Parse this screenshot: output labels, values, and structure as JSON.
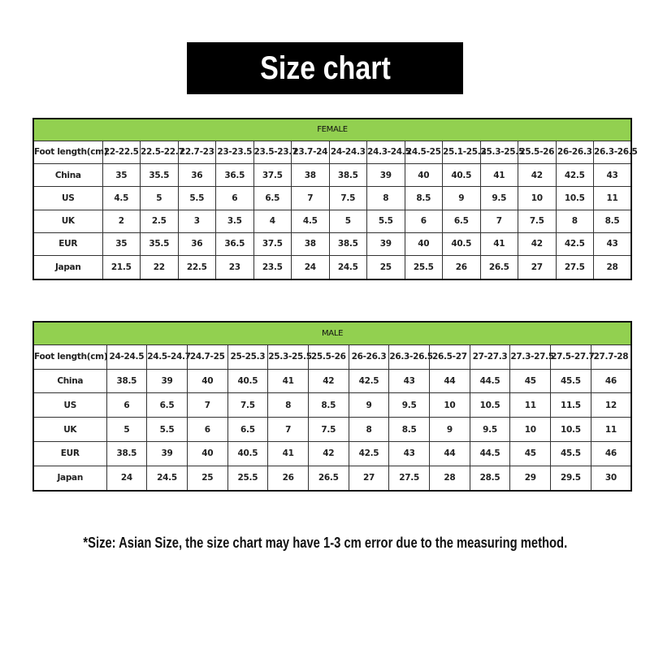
{
  "title": "Size chart",
  "female": {
    "header": "FEMALE",
    "first_col_label": "Foot length(cm)",
    "foot_lengths": [
      "22-22.5",
      "22.5-22.7",
      "22.7-23",
      "23-23.5",
      "23.5-23.7",
      "23.7-24",
      "24-24.3",
      "24.3-24.5",
      "24.5-25",
      "25.1-25.3",
      "25.3-25.5",
      "25.5-26",
      "26-26.3",
      "26.3-26.5"
    ],
    "rows": [
      {
        "label": "China",
        "values": [
          "35",
          "35.5",
          "36",
          "36.5",
          "37.5",
          "38",
          "38.5",
          "39",
          "40",
          "40.5",
          "41",
          "42",
          "42.5",
          "43"
        ]
      },
      {
        "label": "US",
        "values": [
          "4.5",
          "5",
          "5.5",
          "6",
          "6.5",
          "7",
          "7.5",
          "8",
          "8.5",
          "9",
          "9.5",
          "10",
          "10.5",
          "11"
        ]
      },
      {
        "label": "UK",
        "values": [
          "2",
          "2.5",
          "3",
          "3.5",
          "4",
          "4.5",
          "5",
          "5.5",
          "6",
          "6.5",
          "7",
          "7.5",
          "8",
          "8.5"
        ]
      },
      {
        "label": "EUR",
        "values": [
          "35",
          "35.5",
          "36",
          "36.5",
          "37.5",
          "38",
          "38.5",
          "39",
          "40",
          "40.5",
          "41",
          "42",
          "42.5",
          "43"
        ]
      },
      {
        "label": "Japan",
        "values": [
          "21.5",
          "22",
          "22.5",
          "23",
          "23.5",
          "24",
          "24.5",
          "25",
          "25.5",
          "26",
          "26.5",
          "27",
          "27.5",
          "28"
        ]
      }
    ]
  },
  "male": {
    "header": "MALE",
    "first_col_label": "Foot length(cm)",
    "foot_lengths": [
      "24-24.5",
      "24.5-24.7",
      "24.7-25",
      "25-25.3",
      "25.3-25.5",
      "25.5-26",
      "26-26.3",
      "26.3-26.5",
      "26.5-27",
      "27-27.3",
      "27.3-27.5",
      "27.5-27.7",
      "27.7-28"
    ],
    "rows": [
      {
        "label": "China",
        "values": [
          "38.5",
          "39",
          "40",
          "40.5",
          "41",
          "42",
          "42.5",
          "43",
          "44",
          "44.5",
          "45",
          "45.5",
          "46"
        ]
      },
      {
        "label": "US",
        "values": [
          "6",
          "6.5",
          "7",
          "7.5",
          "8",
          "8.5",
          "9",
          "9.5",
          "10",
          "10.5",
          "11",
          "11.5",
          "12"
        ]
      },
      {
        "label": "UK",
        "values": [
          "5",
          "5.5",
          "6",
          "6.5",
          "7",
          "7.5",
          "8",
          "8.5",
          "9",
          "9.5",
          "10",
          "10.5",
          "11"
        ]
      },
      {
        "label": "EUR",
        "values": [
          "38.5",
          "39",
          "40",
          "40.5",
          "41",
          "42",
          "42.5",
          "43",
          "44",
          "44.5",
          "45",
          "45.5",
          "46"
        ]
      },
      {
        "label": "Japan",
        "values": [
          "24",
          "24.5",
          "25",
          "25.5",
          "26",
          "26.5",
          "27",
          "27.5",
          "28",
          "28.5",
          "29",
          "29.5",
          "30"
        ]
      }
    ]
  },
  "note": "*Size: Asian Size, the size chart may have 1-3 cm error due to the measuring method.",
  "colors": {
    "header_green": "#92d050",
    "title_bg": "#000000"
  }
}
